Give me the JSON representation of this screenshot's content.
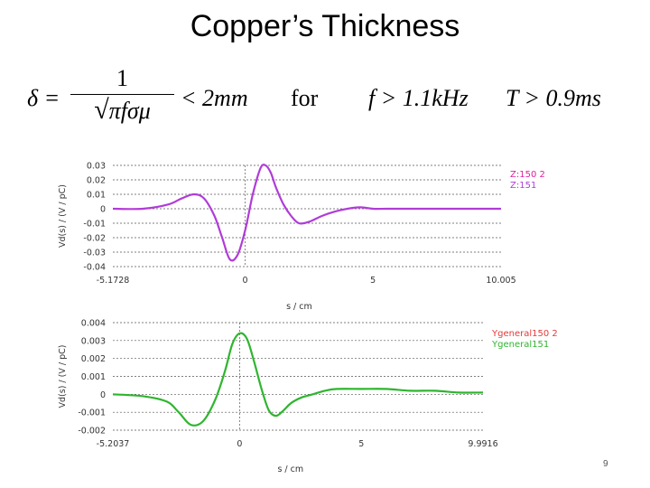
{
  "slide": {
    "title": "Copper’s Thickness",
    "page_number": "9"
  },
  "formula": {
    "lhs": "δ =",
    "numerator": "1",
    "denominator": "πfσμ",
    "bound": "< 2mm",
    "word": "for",
    "freq": "f > 1.1kHz",
    "period": "T > 0.9ms"
  },
  "chart_data": [
    {
      "type": "line",
      "title": "",
      "xlabel": "s / cm",
      "ylabel": "Vd(s) / (V / pC)",
      "xlim": [
        -5.1728,
        10.005
      ],
      "ylim": [
        -0.04,
        0.03
      ],
      "xticks": [
        "-5.1728",
        "0",
        "5",
        "10.005"
      ],
      "yticks": [
        "0.03",
        "0.02",
        "0.01",
        "0",
        "-0.01",
        "-0.02",
        "-0.03",
        "-0.04"
      ],
      "grid": true,
      "legend_position": "right",
      "series": [
        {
          "name": "Z:150 2",
          "color": "#e0209f",
          "x": [],
          "y": []
        },
        {
          "name": "Z:151",
          "color": "#b03cd8",
          "x": [
            -5.1728,
            -4.0,
            -3.0,
            -2.5,
            -2.0,
            -1.6,
            -1.2,
            -0.9,
            -0.6,
            -0.3,
            0,
            0.3,
            0.6,
            0.8,
            1.0,
            1.2,
            1.5,
            1.8,
            2.1,
            2.5,
            3.0,
            3.5,
            4.0,
            4.5,
            5.0,
            5.5,
            6.0,
            7.0,
            8.0,
            9.0,
            10.005
          ],
          "y": [
            0,
            0,
            0.003,
            0.007,
            0.01,
            0.007,
            -0.005,
            -0.02,
            -0.035,
            -0.032,
            -0.015,
            0.01,
            0.028,
            0.03,
            0.025,
            0.015,
            0.003,
            -0.005,
            -0.01,
            -0.009,
            -0.005,
            -0.002,
            0,
            0.001,
            0,
            0,
            0,
            0,
            0,
            0,
            0
          ]
        }
      ]
    },
    {
      "type": "line",
      "title": "",
      "xlabel": "s / cm",
      "ylabel": "Vd(s) / (V / pC)",
      "xlim": [
        -5.2037,
        9.9916
      ],
      "ylim": [
        -0.002,
        0.004
      ],
      "xticks": [
        "-5.2037",
        "0",
        "5",
        "9.9916"
      ],
      "yticks": [
        "0.004",
        "0.003",
        "0.002",
        "0.001",
        "0",
        "-0.001",
        "-0.002"
      ],
      "grid": true,
      "legend_position": "right",
      "series": [
        {
          "name": "Ygeneral150 2",
          "color": "#e53a3a",
          "x": [],
          "y": []
        },
        {
          "name": "Ygeneral151",
          "color": "#2fb52f",
          "x": [
            -5.2037,
            -4.0,
            -3.0,
            -2.5,
            -2.0,
            -1.5,
            -1.0,
            -0.6,
            -0.3,
            0,
            0.3,
            0.6,
            0.9,
            1.2,
            1.5,
            1.8,
            2.1,
            2.5,
            3.0,
            3.5,
            4.0,
            5.0,
            6.0,
            7.0,
            8.0,
            9.0,
            9.9916
          ],
          "y": [
            0,
            -0.0001,
            -0.0004,
            -0.001,
            -0.0017,
            -0.0015,
            -0.0003,
            0.0013,
            0.0028,
            0.0034,
            0.0031,
            0.0018,
            0.0003,
            -0.0009,
            -0.0012,
            -0.0009,
            -0.0005,
            -0.0002,
            0,
            0.0002,
            0.0003,
            0.0003,
            0.0003,
            0.0002,
            0.0002,
            0.0001,
            0.0001
          ]
        }
      ]
    }
  ]
}
